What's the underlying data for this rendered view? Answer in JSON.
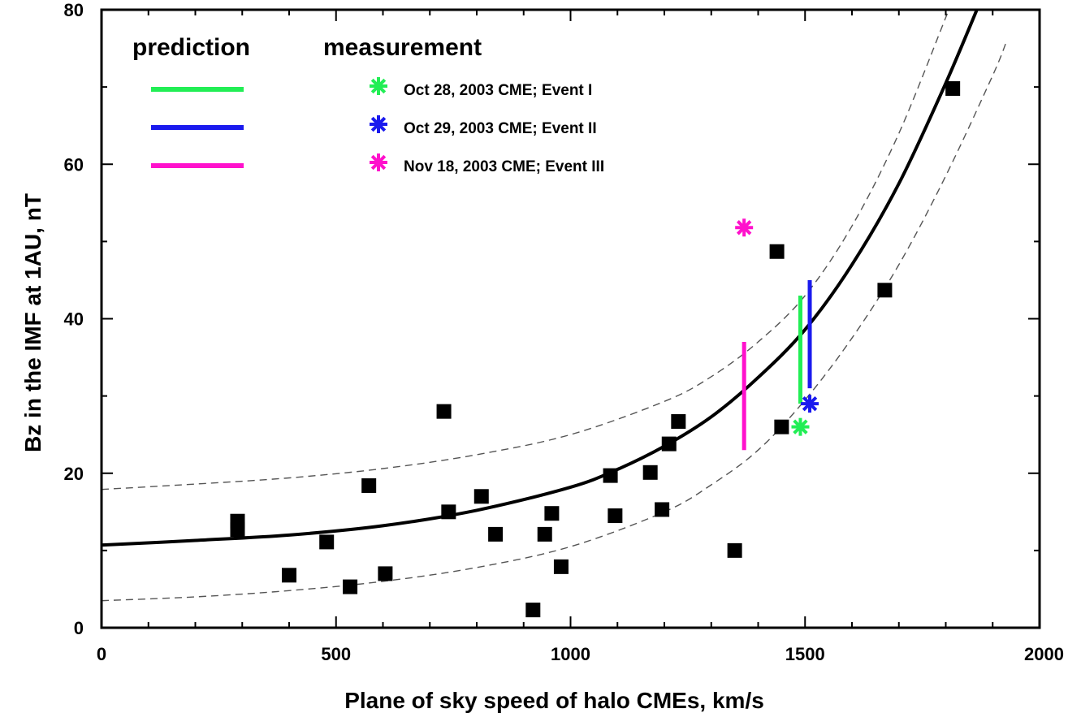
{
  "chart_data": {
    "type": "scatter",
    "xlabel": "Plane of sky speed of halo CMEs, km/s",
    "ylabel": "Bz in the IMF at 1AU, nT",
    "xlim": [
      0,
      2000
    ],
    "ylim": [
      0,
      80
    ],
    "x_ticks": [
      0,
      500,
      1000,
      1500,
      2000
    ],
    "y_ticks": [
      0,
      20,
      40,
      60,
      80
    ],
    "x_minor_step": 100,
    "y_minor_step": 10,
    "legend": {
      "placement": "top-left",
      "prediction_header": "prediction",
      "measurement_header": "measurement",
      "entries": [
        {
          "label": "Oct 28, 2003 CME; Event I",
          "color": "#22ee55"
        },
        {
          "label": "Oct 29, 2003 CME; Event II",
          "color": "#1a1aee"
        },
        {
          "label": "Nov 18, 2003 CME; Event III",
          "color": "#ff11cc"
        }
      ]
    },
    "fit_curve": {
      "style": "solid",
      "color": "#000000",
      "points": [
        [
          0,
          10.7
        ],
        [
          200,
          11.3
        ],
        [
          400,
          12.0
        ],
        [
          600,
          13.2
        ],
        [
          800,
          15.2
        ],
        [
          1000,
          18.2
        ],
        [
          1100,
          20.5
        ],
        [
          1200,
          23.5
        ],
        [
          1300,
          27.3
        ],
        [
          1400,
          32.4
        ],
        [
          1500,
          38.6
        ],
        [
          1600,
          47.0
        ],
        [
          1700,
          57.5
        ],
        [
          1800,
          70.5
        ],
        [
          1880,
          82.0
        ]
      ]
    },
    "upper_band": {
      "style": "dashed",
      "color": "#555555",
      "points": [
        [
          0,
          17.9
        ],
        [
          200,
          18.6
        ],
        [
          400,
          19.4
        ],
        [
          600,
          20.6
        ],
        [
          800,
          22.4
        ],
        [
          1000,
          25.0
        ],
        [
          1200,
          29.3
        ],
        [
          1300,
          32.5
        ],
        [
          1400,
          37.0
        ],
        [
          1500,
          43.0
        ],
        [
          1600,
          52.0
        ],
        [
          1700,
          64.0
        ],
        [
          1800,
          79.0
        ],
        [
          1820,
          82.0
        ]
      ]
    },
    "lower_band": {
      "style": "dashed",
      "color": "#555555",
      "points": [
        [
          0,
          3.5
        ],
        [
          200,
          4.0
        ],
        [
          400,
          4.8
        ],
        [
          600,
          6.0
        ],
        [
          800,
          7.8
        ],
        [
          1000,
          10.5
        ],
        [
          1200,
          15.0
        ],
        [
          1300,
          18.5
        ],
        [
          1400,
          23.0
        ],
        [
          1500,
          29.5
        ],
        [
          1600,
          37.5
        ],
        [
          1700,
          47.0
        ],
        [
          1800,
          58.5
        ],
        [
          1900,
          71.5
        ],
        [
          1930,
          76.0
        ]
      ]
    },
    "data_points": [
      {
        "x": 290,
        "y": 13.8
      },
      {
        "x": 290,
        "y": 12.7
      },
      {
        "x": 400,
        "y": 6.8
      },
      {
        "x": 480,
        "y": 11.1
      },
      {
        "x": 530,
        "y": 5.3
      },
      {
        "x": 570,
        "y": 18.4
      },
      {
        "x": 605,
        "y": 7.0
      },
      {
        "x": 730,
        "y": 28.0
      },
      {
        "x": 740,
        "y": 15.0
      },
      {
        "x": 810,
        "y": 17.0
      },
      {
        "x": 840,
        "y": 12.1
      },
      {
        "x": 920,
        "y": 2.3
      },
      {
        "x": 945,
        "y": 12.1
      },
      {
        "x": 960,
        "y": 14.8
      },
      {
        "x": 980,
        "y": 7.9
      },
      {
        "x": 1085,
        "y": 19.7
      },
      {
        "x": 1095,
        "y": 14.5
      },
      {
        "x": 1170,
        "y": 20.1
      },
      {
        "x": 1195,
        "y": 15.3
      },
      {
        "x": 1210,
        "y": 23.8
      },
      {
        "x": 1230,
        "y": 26.7
      },
      {
        "x": 1350,
        "y": 10.0
      },
      {
        "x": 1440,
        "y": 48.7
      },
      {
        "x": 1450,
        "y": 26.0
      },
      {
        "x": 1670,
        "y": 43.7
      },
      {
        "x": 1815,
        "y": 69.8
      }
    ],
    "events": [
      {
        "name": "Event I",
        "color": "#22ee55",
        "prediction_x": 1490,
        "prediction_range": [
          29.0,
          43.0
        ],
        "measurement": {
          "x": 1490,
          "y": 26.0
        }
      },
      {
        "name": "Event II",
        "color": "#1a1aee",
        "prediction_x": 1510,
        "prediction_range": [
          31.0,
          45.0
        ],
        "measurement": {
          "x": 1510,
          "y": 29.0
        }
      },
      {
        "name": "Event III",
        "color": "#ff11cc",
        "prediction_x": 1370,
        "prediction_range": [
          23.0,
          37.0
        ],
        "measurement": {
          "x": 1370,
          "y": 51.8
        }
      }
    ]
  }
}
